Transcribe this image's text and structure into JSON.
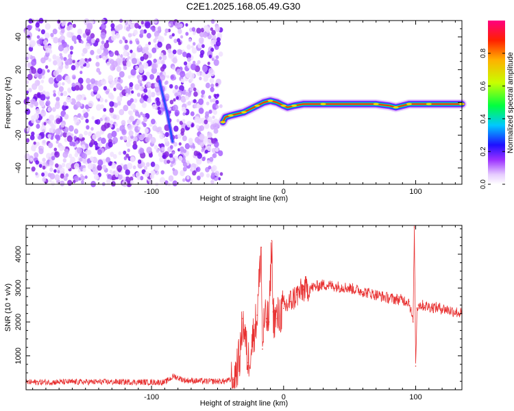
{
  "title": "C2E1.2025.168.05.49.G30",
  "chart_data": [
    {
      "type": "heatmap",
      "xlabel": "Height of straight line (km)",
      "ylabel": "Frequency (Hz)",
      "xlim": [
        -195,
        135
      ],
      "ylim": [
        -50,
        50
      ],
      "xticks": [
        -100,
        0,
        100
      ],
      "yticks": [
        -40,
        -20,
        0,
        20,
        40
      ],
      "colorbar": {
        "label": "Normalized spectral amplitude",
        "range": [
          0,
          1
        ],
        "ticks": [
          "0.0",
          "0.2",
          "0.4",
          "0.6",
          "0.8"
        ]
      },
      "noise_region_x": [
        -195,
        -47
      ],
      "streak": [
        [
          -94,
          13
        ],
        [
          -88,
          -7
        ],
        [
          -84,
          -24
        ]
      ],
      "trace": [
        [
          -46,
          -12
        ],
        [
          -44,
          -9
        ],
        [
          -40,
          -8
        ],
        [
          -35,
          -7
        ],
        [
          -30,
          -6
        ],
        [
          -25,
          -4
        ],
        [
          -20,
          -2
        ],
        [
          -15,
          0
        ],
        [
          -10,
          1
        ],
        [
          -5,
          0
        ],
        [
          0,
          -2
        ],
        [
          3,
          -3
        ],
        [
          8,
          -2
        ],
        [
          15,
          -1
        ],
        [
          30,
          -1
        ],
        [
          50,
          -1
        ],
        [
          70,
          -1
        ],
        [
          80,
          -2
        ],
        [
          85,
          -3
        ],
        [
          90,
          -2
        ],
        [
          95,
          -1
        ],
        [
          100,
          -1
        ],
        [
          110,
          -1
        ],
        [
          120,
          -1
        ],
        [
          135,
          -1
        ]
      ]
    },
    {
      "type": "line",
      "xlabel": "Height of straight line (km)",
      "ylabel": "SNR (10 * v/v)",
      "xlim": [
        -195,
        135
      ],
      "ylim": [
        0,
        4850
      ],
      "xticks": [
        -100,
        0,
        100
      ],
      "yticks": [
        1000,
        2000,
        3000,
        4000
      ],
      "color": "#e83030",
      "x": [
        -195,
        -160,
        -120,
        -90,
        -83,
        -75,
        -60,
        -45,
        -38,
        -33,
        -31,
        -29,
        -27,
        -24,
        -20,
        -17,
        -16,
        -15,
        -13,
        -11,
        -9,
        -8,
        -7,
        -5,
        0,
        5,
        10,
        15,
        20,
        25,
        30,
        35,
        40,
        45,
        50,
        60,
        70,
        80,
        90,
        95,
        98,
        99,
        100,
        101,
        102,
        104,
        110,
        120,
        130,
        135
      ],
      "y": [
        220,
        230,
        230,
        220,
        400,
        280,
        250,
        250,
        300,
        1000,
        2100,
        1500,
        800,
        1400,
        2200,
        4200,
        1200,
        1900,
        2100,
        2000,
        4400,
        2300,
        2100,
        2100,
        2400,
        2600,
        2800,
        2950,
        3000,
        3050,
        3100,
        3080,
        3050,
        3030,
        3000,
        2900,
        2800,
        2700,
        2650,
        2600,
        2000,
        4800,
        700,
        2400,
        2500,
        2500,
        2450,
        2400,
        2300,
        2250
      ]
    }
  ]
}
